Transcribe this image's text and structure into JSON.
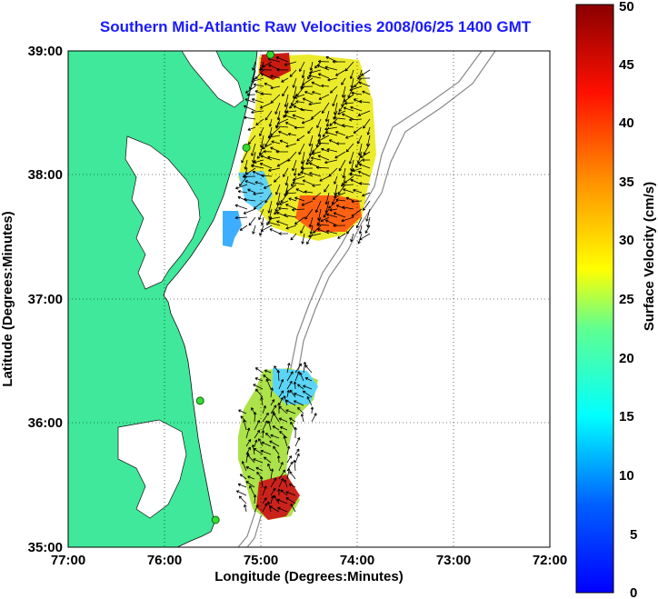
{
  "title": "Southern Mid-Atlantic Raw Velocities 2008/06/25 1400 GMT",
  "axes": {
    "xlabel": "Longitude (Degrees:Minutes)",
    "ylabel": "Latitude (Degrees:Minutes)",
    "x_ticks": [
      "77:00",
      "76:00",
      "75:00",
      "74:00",
      "73:00",
      "72:00"
    ],
    "y_ticks": [
      "39:00",
      "38:00",
      "37:00",
      "36:00",
      "35:00"
    ],
    "x_range": [
      -77,
      -72
    ],
    "y_range": [
      35,
      39
    ],
    "grid": "dotted"
  },
  "colorbar": {
    "label": "Surface Velocity (cm/s)",
    "ticks": [
      "0",
      "5",
      "10",
      "15",
      "20",
      "25",
      "30",
      "35",
      "40",
      "45",
      "50"
    ],
    "range": [
      0,
      50
    ],
    "colormap": "jet"
  },
  "colors": {
    "land": "#3fe89a",
    "water": "#ffffff",
    "title": "#1a1aff",
    "station": "#33dd33",
    "bathymetry": "#888888"
  },
  "stations": [
    {
      "lon": -74.9,
      "lat": 38.97
    },
    {
      "lon": -75.15,
      "lat": 38.22
    },
    {
      "lon": -75.63,
      "lat": 36.18
    },
    {
      "lon": -75.47,
      "lat": 35.22
    }
  ]
}
